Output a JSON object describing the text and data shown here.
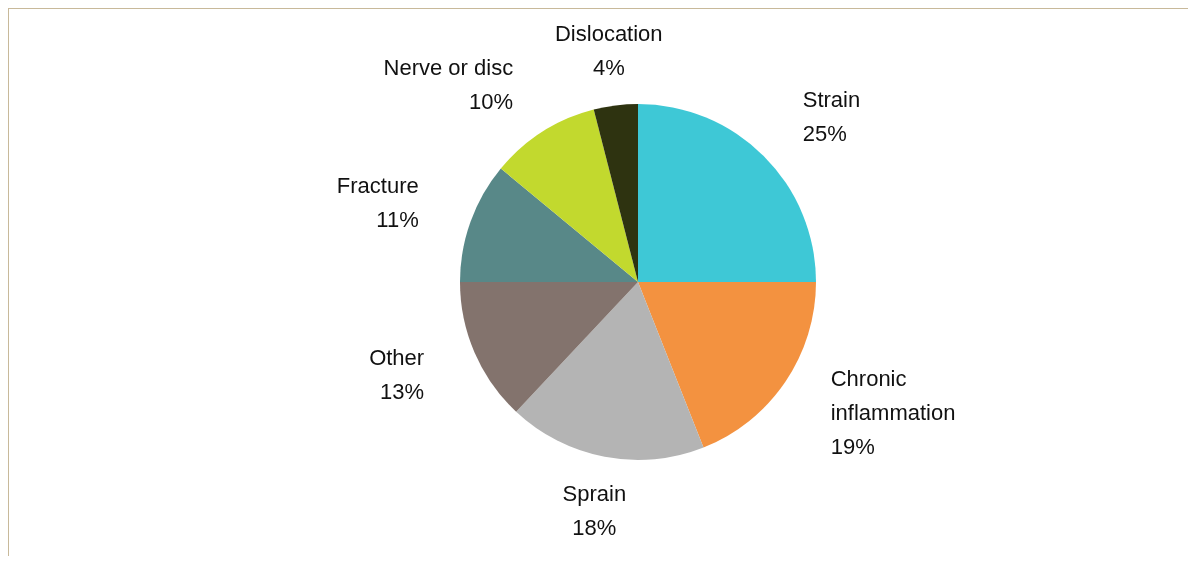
{
  "chart_data": {
    "type": "pie",
    "categories": [
      "Strain",
      "Chronic inflammation",
      "Sprain",
      "Other",
      "Fracture",
      "Nerve or disc",
      "Dislocation"
    ],
    "values": [
      25,
      19,
      18,
      13,
      11,
      10,
      4
    ],
    "value_labels": [
      "25%",
      "19%",
      "18%",
      "13%",
      "11%",
      "10%",
      "4%"
    ],
    "colors": [
      "#3ec8d6",
      "#f39240",
      "#b4b4b4",
      "#83736d",
      "#588888",
      "#c2d92e",
      "#2e3310"
    ],
    "legend": false
  }
}
